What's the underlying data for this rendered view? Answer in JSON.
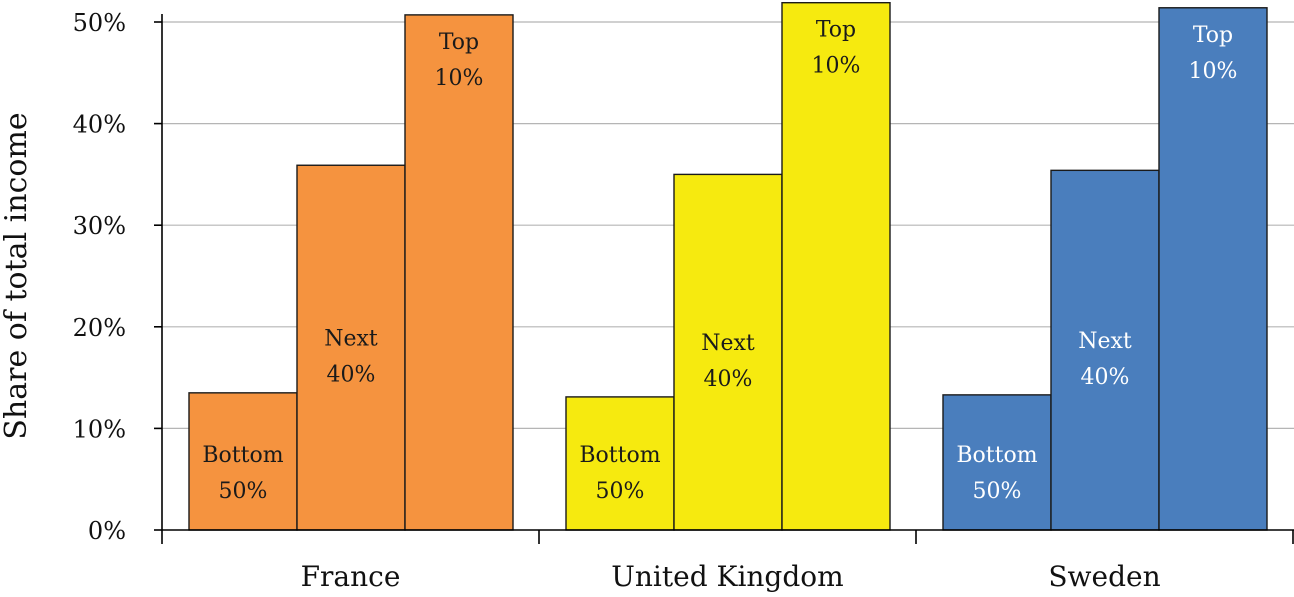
{
  "chart_data": {
    "type": "bar",
    "title": "",
    "xlabel": "",
    "ylabel": "Share of total income",
    "ylim": [
      0,
      50
    ],
    "yticks": [
      0,
      10,
      20,
      30,
      40,
      50
    ],
    "ytick_labels": [
      "0%",
      "10%",
      "20%",
      "30%",
      "40%",
      "50%"
    ],
    "grid": true,
    "legend": "none",
    "categories": [
      "France",
      "United Kingdom",
      "Sweden"
    ],
    "groups": [
      "Bottom 50%",
      "Next 40%",
      "Top 10%"
    ],
    "group_labels": [
      [
        "Bottom",
        "50%"
      ],
      [
        "Next",
        "40%"
      ],
      [
        "Top",
        "10%"
      ]
    ],
    "values": [
      [
        13.5,
        35.9,
        50.7
      ],
      [
        13.1,
        35.0,
        51.9
      ],
      [
        13.3,
        35.4,
        51.4
      ]
    ],
    "colors": [
      "#F5933F",
      "#F6EA0F",
      "#4A7EBD"
    ],
    "label_colors": [
      "#1a1a1a",
      "#1a1a1a",
      "#ffffff"
    ]
  }
}
